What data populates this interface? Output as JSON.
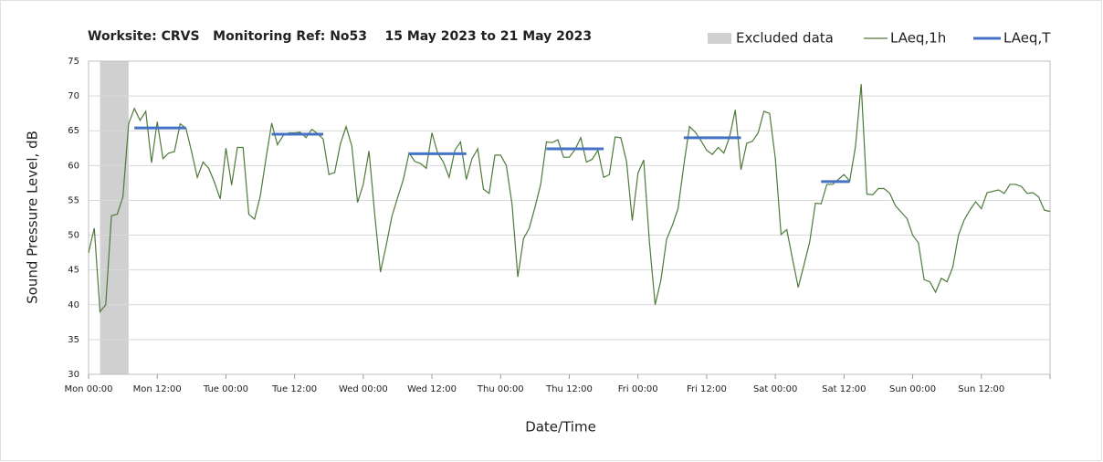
{
  "chart_data": {
    "type": "line",
    "title": "Worksite: CRVS   Monitoring Ref: No53    15 May 2023 to 21 May 2023",
    "xlabel": "Date/Time",
    "ylabel": "Sound Pressure Level, dB",
    "xlim": [
      0,
      168
    ],
    "ylim": [
      30,
      75
    ],
    "yticks": [
      30,
      35,
      40,
      45,
      50,
      55,
      60,
      65,
      70,
      75
    ],
    "xticks": [
      {
        "value": 0,
        "label": "Mon 00:00"
      },
      {
        "value": 12,
        "label": "Mon 12:00"
      },
      {
        "value": 24,
        "label": "Tue 00:00"
      },
      {
        "value": 36,
        "label": "Tue 12:00"
      },
      {
        "value": 48,
        "label": "Wed 00:00"
      },
      {
        "value": 60,
        "label": "Wed 12:00"
      },
      {
        "value": 72,
        "label": "Thu 00:00"
      },
      {
        "value": 84,
        "label": "Thu 12:00"
      },
      {
        "value": 96,
        "label": "Fri 00:00"
      },
      {
        "value": 108,
        "label": "Fri 12:00"
      },
      {
        "value": 120,
        "label": "Sat 00:00"
      },
      {
        "value": 132,
        "label": "Sat 12:00"
      },
      {
        "value": 144,
        "label": "Sun 00:00"
      },
      {
        "value": 156,
        "label": "Sun 12:00"
      }
    ],
    "grid": true,
    "excluded": {
      "name": "Excluded data",
      "color": "#d0d0d0",
      "range": [
        2,
        7
      ]
    },
    "x": [
      0,
      1,
      2,
      3,
      4,
      5,
      6,
      7,
      8,
      9,
      10,
      11,
      12,
      13,
      14,
      15,
      16,
      17,
      18,
      19,
      20,
      21,
      22,
      23,
      24,
      25,
      26,
      27,
      28,
      29,
      30,
      31,
      32,
      33,
      34,
      35,
      36,
      37,
      38,
      39,
      40,
      41,
      42,
      43,
      44,
      45,
      46,
      47,
      48,
      49,
      50,
      51,
      52,
      53,
      54,
      55,
      56,
      57,
      58,
      59,
      60,
      61,
      62,
      63,
      64,
      65,
      66,
      67,
      68,
      69,
      70,
      71,
      72,
      73,
      74,
      75,
      76,
      77,
      78,
      79,
      80,
      81,
      82,
      83,
      84,
      85,
      86,
      87,
      88,
      89,
      90,
      91,
      92,
      93,
      94,
      95,
      96,
      97,
      98,
      99,
      100,
      101,
      102,
      103,
      104,
      105,
      106,
      107,
      108,
      109,
      110,
      111,
      112,
      113,
      114,
      115,
      116,
      117,
      118,
      119,
      120,
      121,
      122,
      123,
      124,
      125,
      126,
      127,
      128,
      129,
      130,
      131,
      132,
      133,
      134,
      135,
      136,
      137,
      138,
      139,
      140,
      141,
      142,
      143,
      144,
      145,
      146,
      147,
      148,
      149,
      150,
      151,
      152,
      153,
      154,
      155,
      156,
      157,
      158,
      159,
      160,
      161,
      162,
      163,
      164,
      165,
      166,
      167,
      168
    ],
    "series": [
      {
        "name": "LAeq,1h",
        "color": "#4e7a3a",
        "values": [
          47.5,
          51,
          39,
          40,
          52.8,
          53,
          55.5,
          66,
          68.2,
          66.5,
          67.8,
          60.4,
          66.3,
          61,
          61.8,
          62,
          66,
          65.4,
          62,
          58.3,
          60.5,
          59.6,
          57.6,
          55.2,
          62.5,
          57.2,
          62.6,
          62.6,
          53,
          52.3,
          55.6,
          61,
          66.1,
          63,
          64.3,
          64.7,
          64.7,
          64.8,
          64,
          65.2,
          64.6,
          63.8,
          58.7,
          59,
          63.1,
          65.6,
          62.8,
          54.7,
          57.3,
          62.1,
          53,
          44.7,
          48.5,
          52.7,
          55.4,
          58,
          61.8,
          60.6,
          60.3,
          59.6,
          64.7,
          61.8,
          60.5,
          58.3,
          62.2,
          63.4,
          58,
          61,
          62.4,
          56.6,
          56,
          61.5,
          61.5,
          60,
          54.4,
          44,
          49.5,
          51,
          54,
          57.3,
          63.4,
          63.3,
          63.7,
          61.2,
          61.2,
          62.3,
          64,
          60.5,
          60.9,
          62.2,
          58.3,
          58.7,
          64.1,
          64,
          60.6,
          52.1,
          58.9,
          60.8,
          49,
          40,
          43.5,
          49.4,
          51.4,
          53.8,
          60,
          65.6,
          64.8,
          63.6,
          62.2,
          61.6,
          62.6,
          61.8,
          64.1,
          68,
          59.4,
          63.2,
          63.5,
          64.7,
          67.8,
          67.5,
          61,
          50.1,
          50.8,
          46.6,
          42.5,
          45.7,
          49,
          54.6,
          54.5,
          57.3,
          57.3,
          58,
          58.7,
          57.8,
          62.7,
          71.7,
          55.9,
          55.8,
          56.7,
          56.7,
          56,
          54.2,
          53.3,
          52.4,
          50,
          48.9,
          43.6,
          43.3,
          41.8,
          43.8,
          43.3,
          45.4,
          50,
          52.2,
          53.6,
          54.8,
          53.8,
          56.1,
          56.3,
          56.5,
          56,
          57.3,
          57.3,
          57,
          56,
          56.1,
          55.5,
          53.6,
          53.4
        ]
      },
      {
        "name": "LAeq,T",
        "color": "#4472c4",
        "segments": [
          {
            "start": 8,
            "end": 17,
            "value": 65.4
          },
          {
            "start": 32,
            "end": 41,
            "value": 64.5
          },
          {
            "start": 56,
            "end": 66,
            "value": 61.7
          },
          {
            "start": 80,
            "end": 90,
            "value": 62.4
          },
          {
            "start": 104,
            "end": 114,
            "value": 64.0
          },
          {
            "start": 128,
            "end": 133,
            "value": 57.7
          }
        ]
      }
    ]
  }
}
